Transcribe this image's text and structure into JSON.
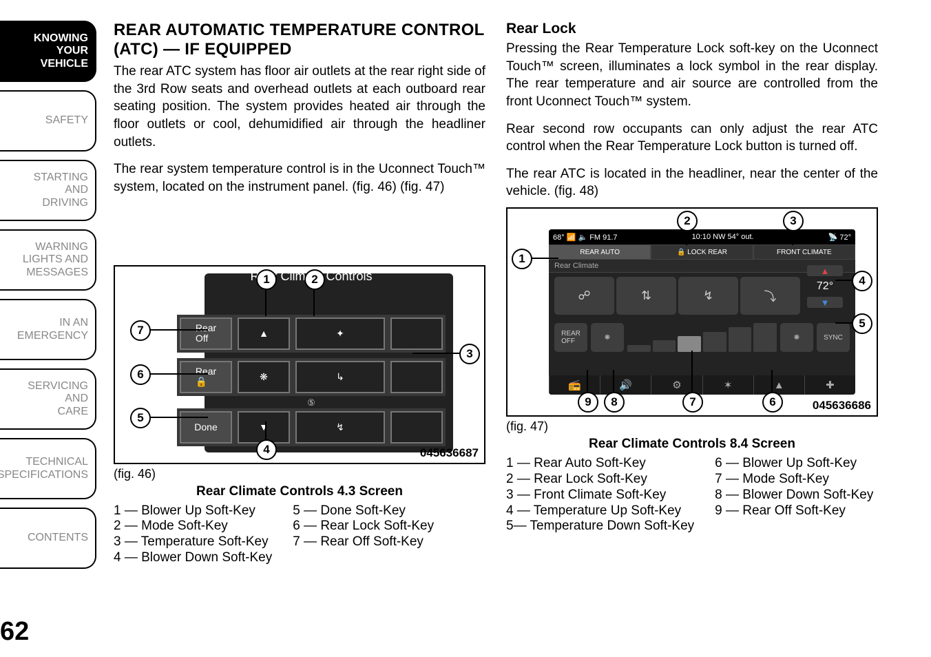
{
  "sidebar": {
    "tabs": [
      {
        "label": "KNOWING\nYOUR\nVEHICLE",
        "active": true
      },
      {
        "label": "SAFETY",
        "active": false
      },
      {
        "label": "STARTING\nAND\nDRIVING",
        "active": false
      },
      {
        "label": "WARNING\nLIGHTS AND\nMESSAGES",
        "active": false
      },
      {
        "label": "IN AN\nEMERGENCY",
        "active": false
      },
      {
        "label": "SERVICING\nAND\nCARE",
        "active": false
      },
      {
        "label": "TECHNICAL\nSPECIFICATIONS",
        "active": false
      },
      {
        "label": "CONTENTS",
        "active": false
      }
    ],
    "page_number": "62"
  },
  "left_col": {
    "heading": "REAR AUTOMATIC TEMPERATURE CONTROL (ATC) — IF EQUIPPED",
    "p1": "The rear ATC system has floor air outlets at the rear right side of the 3rd Row seats and overhead outlets at each outboard rear seating position. The system provides heated air through the floor outlets or cool, dehumidified air through the headliner outlets.",
    "p2": "The rear system temperature control is in the Uconnect Touch™ system, located on the instrument panel. (fig. 46) (fig. 47)",
    "fig46": {
      "label": "(fig. 46)",
      "caption": "Rear Climate Controls 4.3 Screen",
      "image_id": "045636687",
      "screen": {
        "title": "Rear Climate Controls",
        "rows": [
          {
            "label": "Rear\nOff",
            "cells": [
              "▲",
              "✦"
            ]
          },
          {
            "label": "Rear\n🔒",
            "cells": [
              "❋",
              "↳"
            ],
            "blower": "⑤"
          },
          {
            "label": "Done",
            "cells": [
              "▼",
              "↯"
            ]
          }
        ]
      },
      "legend_left": [
        "1 — Blower Up Soft-Key",
        "2 — Mode Soft-Key",
        "3 — Temperature Soft-Key",
        "4 — Blower Down Soft-Key"
      ],
      "legend_right": [
        "5 — Done Soft-Key",
        "6 — Rear Lock Soft-Key",
        "7 — Rear Off Soft-Key"
      ]
    }
  },
  "right_col": {
    "heading": "Rear Lock",
    "p1": "Pressing the Rear Temperature Lock soft-key on the Uconnect Touch™ screen, illuminates a lock symbol in the rear display. The rear temperature and air source are controlled from the front Uconnect Touch™ system.",
    "p2": "Rear second row occupants can only adjust the rear ATC control when the Rear Temperature Lock button is turned off.",
    "p3": "The rear ATC is located in the headliner, near the center of the vehicle. (fig. 48)",
    "fig47": {
      "label": "(fig. 47)",
      "caption": "Rear Climate Controls 8.4 Screen",
      "image_id": "045636686",
      "screen": {
        "top_left": "68° 📶 🔈 FM 91.7",
        "top_center": "10:10  NW  54° out.",
        "top_right": "📡 72°",
        "mode_bar": [
          "REAR AUTO",
          "🔒 LOCK REAR",
          "FRONT CLIMATE"
        ],
        "crumb": "Rear Climate",
        "temp_value": "72°",
        "rear_off": "REAR\nOFF",
        "sync": "SYNC"
      },
      "legend_left": [
        "1 — Rear Auto Soft-Key",
        "2 — Rear Lock Soft-Key",
        "3 — Front Climate Soft-Key",
        "4 — Temperature Up Soft-Key",
        "5— Temperature Down Soft-Key"
      ],
      "legend_right": [
        "6 — Blower Up Soft-Key",
        "7 — Mode Soft-Key",
        "8 — Blower Down Soft-Key",
        "9 — Rear Off Soft-Key"
      ]
    }
  }
}
